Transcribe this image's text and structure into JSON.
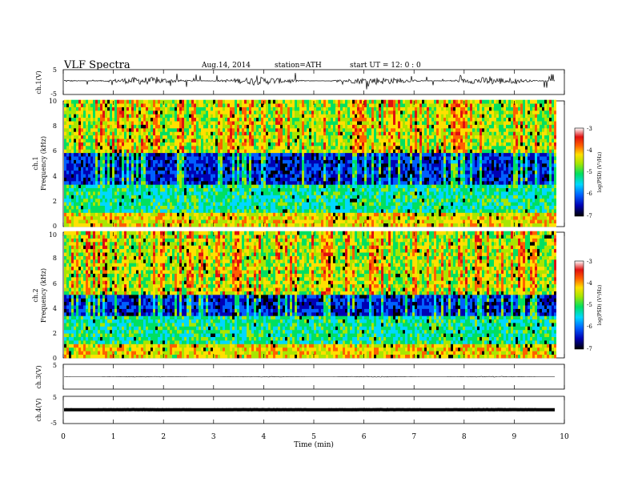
{
  "header": {
    "title": "VLF Spectra",
    "date": "Aug.14, 2014",
    "station": "station=ATH",
    "start": "start  UT =   12: 0  : 0"
  },
  "chart_data": [
    {
      "type": "line",
      "panel": "ch1-waveform",
      "ylabel": "ch.1(V)",
      "ylim": [
        -5,
        5
      ],
      "yticks": [
        "5",
        "-5"
      ],
      "description_values": {
        "baseline_V": 0.5,
        "noise_amplitude_V": 1.5
      },
      "color": "#000000"
    },
    {
      "type": "heatmap",
      "panel": "ch1-spectrogram",
      "ylabel": "ch.1\nFrequency  (kHz)",
      "ylim": [
        0,
        10
      ],
      "yticks": [
        "0",
        "2",
        "4",
        "6",
        "8",
        "10"
      ],
      "colorbar": {
        "label": "log(PSD) (V²/Hz)",
        "range": [
          -7,
          -3
        ],
        "ticks": [
          "-3",
          "-4",
          "-5",
          "-6",
          "-7"
        ]
      },
      "colormap": [
        "#000000",
        "#0000b4",
        "#0060ff",
        "#00d8ff",
        "#00e060",
        "#a8e600",
        "#ffe000",
        "#ff6000",
        "#e01010",
        "#ffffff"
      ],
      "dark_band_kHz": [
        3.3,
        5.8
      ]
    },
    {
      "type": "heatmap",
      "panel": "ch2-spectrogram",
      "ylabel": "ch.2\nFrequency  (kHz)",
      "ylim": [
        0,
        10
      ],
      "yticks": [
        "0",
        "2",
        "4",
        "6",
        "8",
        "10"
      ],
      "colorbar": {
        "label": "log(PSD) (V²/Hz)",
        "range": [
          -7,
          -3
        ],
        "ticks": [
          "-3",
          "-4",
          "-5",
          "-6",
          "-7"
        ]
      },
      "dark_band_kHz": [
        3.2,
        5.0
      ]
    },
    {
      "type": "line",
      "panel": "ch3-waveform",
      "ylabel": "ch.3(V)",
      "ylim": [
        -5,
        5
      ],
      "yticks": [
        "5"
      ],
      "description_values": {
        "baseline_V": 0.0,
        "noise_amplitude_V": 0.15
      }
    },
    {
      "type": "line",
      "panel": "ch4-waveform",
      "ylabel": "ch.4(V)",
      "ylim": [
        -5,
        5
      ],
      "yticks": [
        "5",
        "-5"
      ],
      "description_values": {
        "baseline_V": 0.1,
        "noise_amplitude_V": 0.05
      }
    }
  ],
  "xaxis": {
    "label": "Time  (min)",
    "range": [
      0,
      10
    ],
    "ticks": [
      "0",
      "1",
      "2",
      "3",
      "4",
      "5",
      "6",
      "7",
      "8",
      "9",
      "10"
    ],
    "data_end_min": 9.82
  }
}
